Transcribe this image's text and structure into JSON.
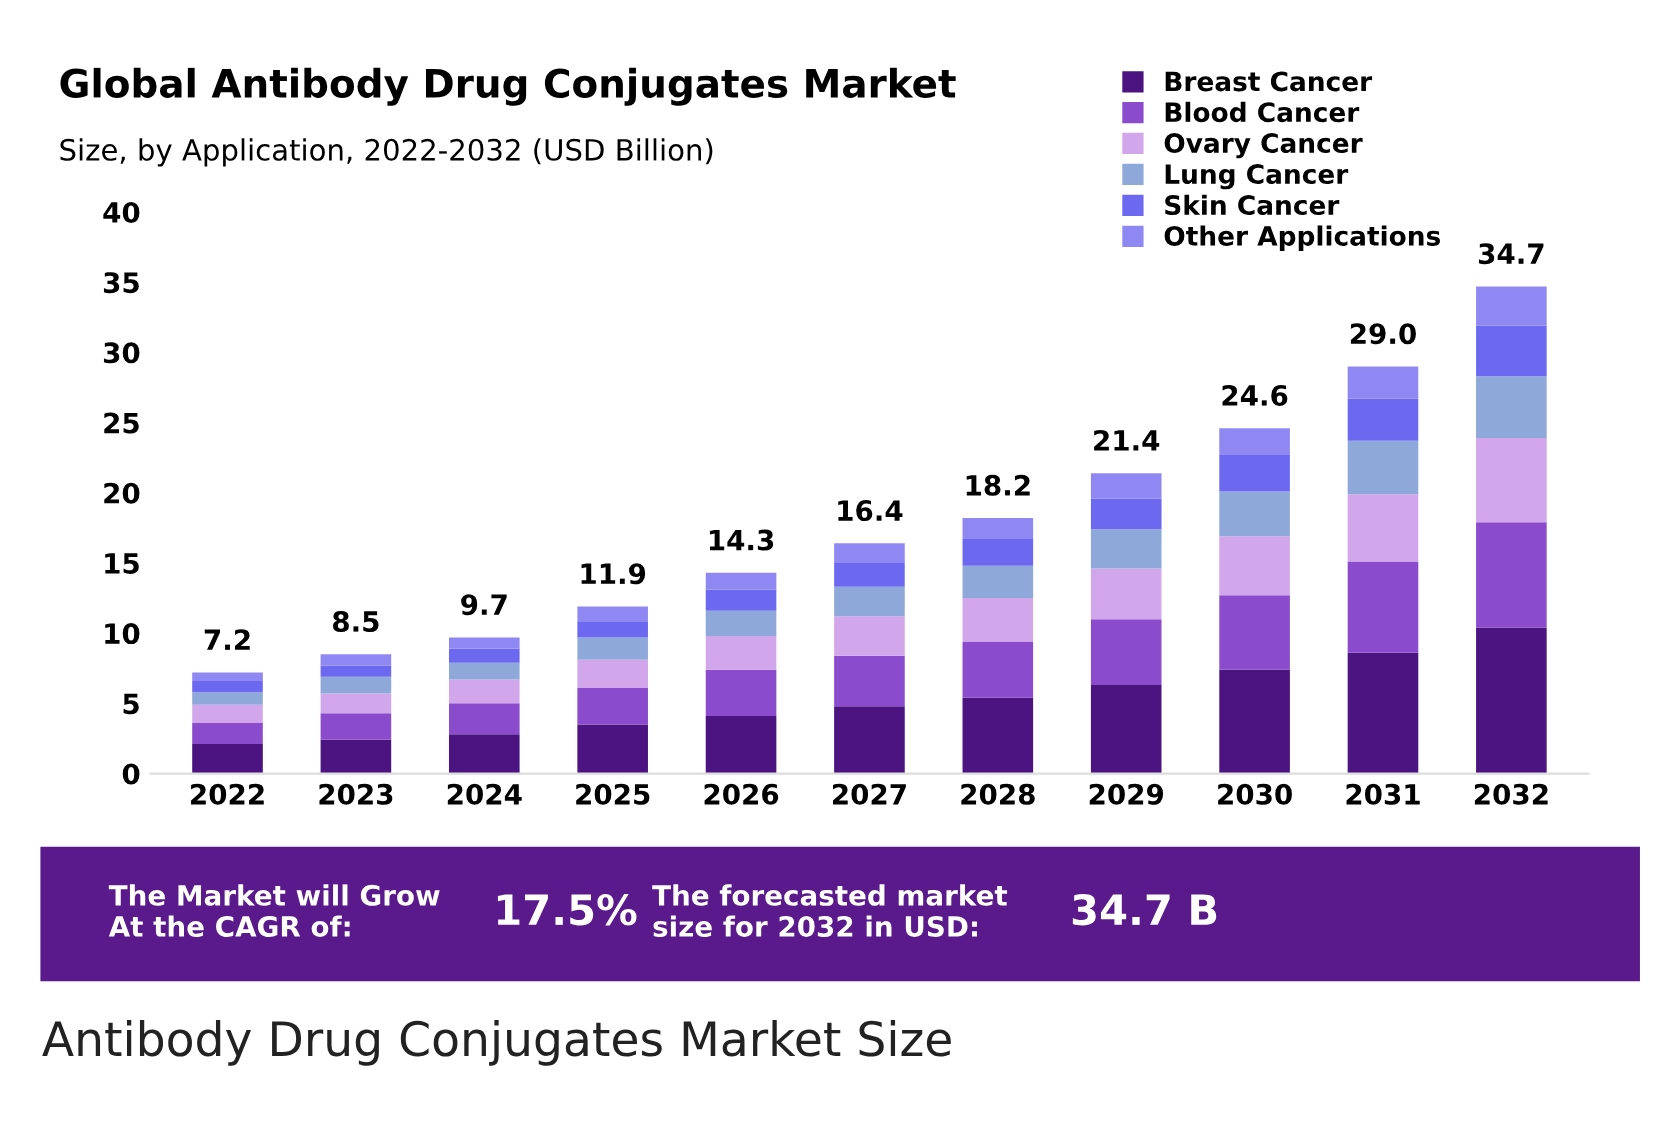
{
  "chart_data": {
    "type": "bar",
    "stacked": true,
    "title": "Global Antibody Drug Conjugates Market",
    "subtitle": "Size, by Application, 2022-2032 (USD Billion)",
    "categories": [
      "2022",
      "2023",
      "2024",
      "2025",
      "2026",
      "2027",
      "2028",
      "2029",
      "2030",
      "2031",
      "2032"
    ],
    "series": [
      {
        "name": "Breast Cancer",
        "color": "#4b1480",
        "values": [
          2.1,
          2.4,
          2.8,
          3.5,
          4.1,
          4.8,
          5.4,
          6.3,
          7.4,
          8.6,
          10.4
        ]
      },
      {
        "name": "Blood Cancer",
        "color": "#8a4ccc",
        "values": [
          1.5,
          1.9,
          2.2,
          2.6,
          3.3,
          3.6,
          4.0,
          4.7,
          5.3,
          6.5,
          7.5
        ]
      },
      {
        "name": "Ovary Cancer",
        "color": "#d2a6ea",
        "values": [
          1.3,
          1.4,
          1.7,
          2.0,
          2.4,
          2.8,
          3.1,
          3.6,
          4.2,
          4.8,
          6.0
        ]
      },
      {
        "name": "Lung Cancer",
        "color": "#8fa8da",
        "values": [
          0.9,
          1.2,
          1.2,
          1.6,
          1.8,
          2.1,
          2.3,
          2.8,
          3.2,
          3.8,
          4.4
        ]
      },
      {
        "name": "Skin Cancer",
        "color": "#6d68f0",
        "values": [
          0.8,
          0.8,
          1.0,
          1.1,
          1.5,
          1.7,
          1.9,
          2.2,
          2.6,
          3.0,
          3.6
        ]
      },
      {
        "name": "Other Applications",
        "color": "#8f88f2",
        "values": [
          0.6,
          0.8,
          0.8,
          1.1,
          1.2,
          1.4,
          1.5,
          1.8,
          1.9,
          2.3,
          2.8
        ]
      }
    ],
    "totals": [
      "7.2",
      "8.5",
      "9.7",
      "11.9",
      "14.3",
      "16.4",
      "18.2",
      "21.4",
      "24.6",
      "29.0",
      "34.7"
    ],
    "ylim": [
      0,
      40
    ],
    "yticks": [
      0,
      5,
      10,
      15,
      20,
      25,
      30,
      35,
      40
    ],
    "legend": "top right",
    "grid": false,
    "annotations": [
      "The Market will Grow\nAt the CAGR of:",
      "17.5%",
      "The forecasted market\nsize for 2032 in USD:",
      "34.7 B",
      "Antibody Drug Conjugates Market Size"
    ]
  }
}
